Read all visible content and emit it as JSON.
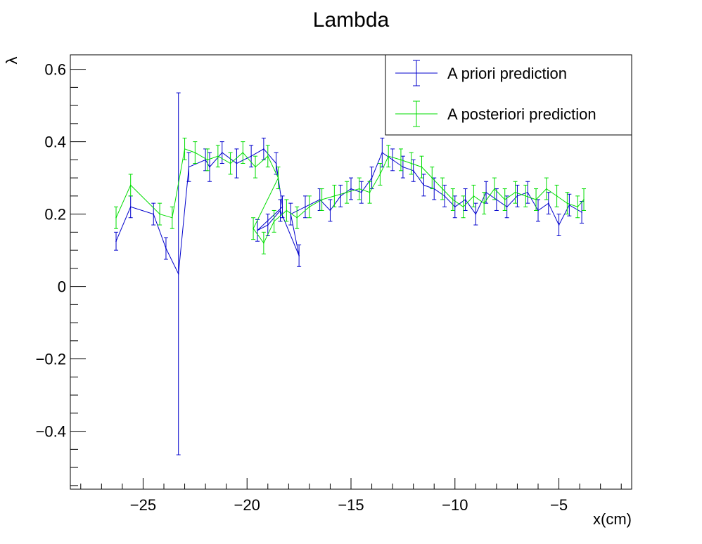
{
  "chart_data": {
    "type": "scatter",
    "title": "Lambda",
    "xlabel": "x(cm)",
    "ylabel": "λ",
    "xlim": [
      -28.5,
      -1.5
    ],
    "ylim": [
      -0.56,
      0.64
    ],
    "xticks": [
      -25,
      -20,
      -15,
      -10,
      -5
    ],
    "xtick_labels": [
      "−25",
      "−20",
      "−15",
      "−10",
      "−5"
    ],
    "yticks": [
      -0.4,
      -0.2,
      0,
      0.2,
      0.4,
      0.6
    ],
    "ytick_labels": [
      "−0.4",
      "−0.2",
      "0",
      "0.2",
      "0.4",
      "0.6"
    ],
    "legend_position": "top-right",
    "series": [
      {
        "name": "A priori prediction",
        "color": "#0000cc",
        "style": "line-with-errorbars",
        "x": [
          -26.3,
          -25.6,
          -24.5,
          -23.9,
          -23.3,
          -22.8,
          -22.0,
          -21.8,
          -21.2,
          -20.5,
          -19.8,
          -19.2,
          -18.6,
          -18.3,
          -19.5,
          -19.0,
          -18.4,
          -17.5,
          -17.9,
          -17.2,
          -16.5,
          -16.0,
          -15.5,
          -15.0,
          -14.5,
          -14.0,
          -13.5,
          -13.0,
          -12.5,
          -12.0,
          -11.5,
          -11.0,
          -10.5,
          -10.0,
          -9.5,
          -9.0,
          -8.5,
          -8.0,
          -7.5,
          -7.0,
          -6.5,
          -6.0,
          -5.5,
          -5.0,
          -4.5,
          -3.9
        ],
        "y": [
          0.125,
          0.22,
          0.2,
          0.105,
          0.035,
          0.33,
          0.35,
          0.33,
          0.37,
          0.34,
          0.36,
          0.38,
          0.34,
          0.22,
          0.155,
          0.17,
          0.21,
          0.085,
          0.2,
          0.22,
          0.24,
          0.21,
          0.25,
          0.27,
          0.26,
          0.3,
          0.37,
          0.35,
          0.33,
          0.32,
          0.28,
          0.27,
          0.25,
          0.22,
          0.24,
          0.2,
          0.26,
          0.24,
          0.22,
          0.25,
          0.26,
          0.21,
          0.23,
          0.17,
          0.225,
          0.205
        ],
        "yerr": [
          0.025,
          0.03,
          0.03,
          0.03,
          0.5,
          0.04,
          0.03,
          0.04,
          0.03,
          0.04,
          0.03,
          0.03,
          0.03,
          0.03,
          0.03,
          0.03,
          0.03,
          0.03,
          0.03,
          0.03,
          0.03,
          0.03,
          0.03,
          0.03,
          0.03,
          0.03,
          0.04,
          0.03,
          0.03,
          0.03,
          0.03,
          0.03,
          0.03,
          0.03,
          0.03,
          0.03,
          0.03,
          0.03,
          0.03,
          0.03,
          0.03,
          0.03,
          0.03,
          0.03,
          0.03,
          0.03
        ]
      },
      {
        "name": "A posteriori prediction",
        "color": "#00dd00",
        "style": "line-with-errorbars",
        "x": [
          -26.3,
          -25.6,
          -24.2,
          -23.6,
          -23.0,
          -22.5,
          -21.9,
          -21.4,
          -20.8,
          -20.2,
          -19.6,
          -19.0,
          -18.5,
          -19.7,
          -19.2,
          -18.7,
          -18.1,
          -17.6,
          -17.0,
          -16.4,
          -15.8,
          -15.2,
          -14.6,
          -14.1,
          -13.6,
          -13.2,
          -12.6,
          -12.1,
          -11.6,
          -11.1,
          -10.6,
          -10.1,
          -9.6,
          -9.1,
          -8.6,
          -8.1,
          -7.6,
          -7.1,
          -6.6,
          -6.1,
          -5.6,
          -5.1,
          -4.6,
          -4.1,
          -3.8
        ],
        "y": [
          0.19,
          0.28,
          0.2,
          0.19,
          0.38,
          0.37,
          0.35,
          0.36,
          0.34,
          0.37,
          0.33,
          0.36,
          0.3,
          0.16,
          0.12,
          0.18,
          0.21,
          0.19,
          0.22,
          0.24,
          0.25,
          0.26,
          0.27,
          0.26,
          0.31,
          0.36,
          0.35,
          0.34,
          0.33,
          0.3,
          0.27,
          0.24,
          0.22,
          0.25,
          0.23,
          0.27,
          0.24,
          0.26,
          0.25,
          0.24,
          0.27,
          0.25,
          0.23,
          0.22,
          0.24
        ]
      }
    ]
  }
}
